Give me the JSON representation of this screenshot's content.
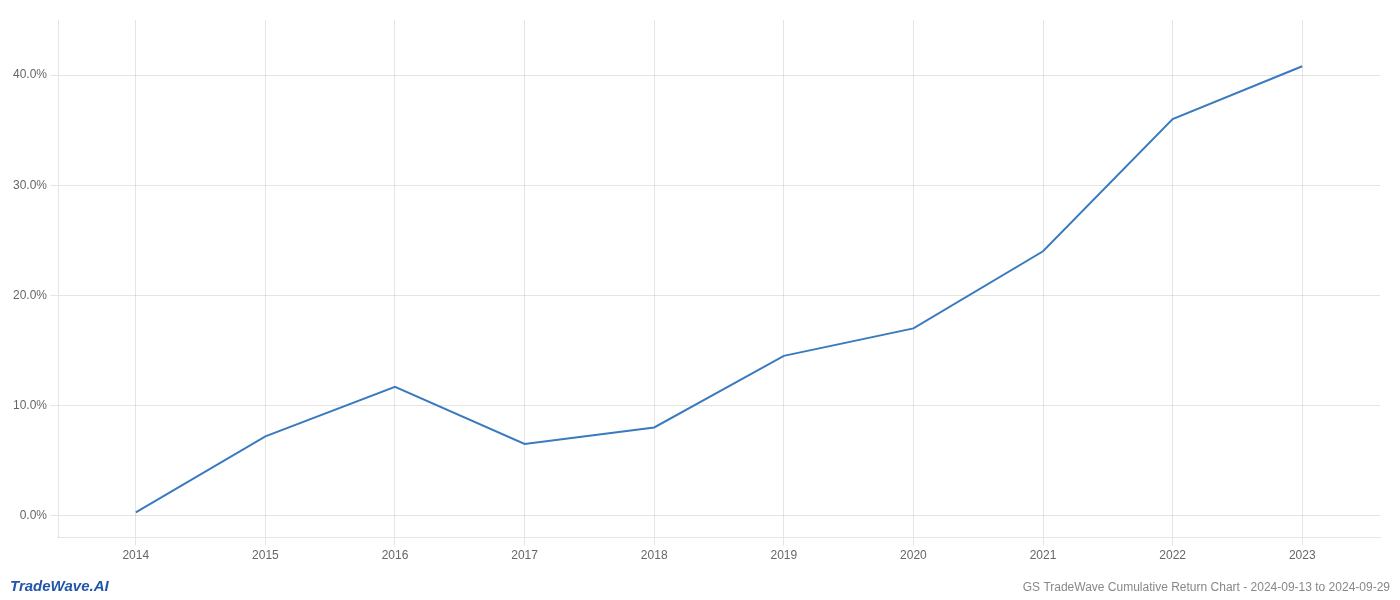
{
  "chart_data": {
    "type": "line",
    "x": [
      2014,
      2015,
      2016,
      2017,
      2018,
      2019,
      2020,
      2021,
      2022,
      2023
    ],
    "values": [
      0.003,
      0.072,
      0.117,
      0.065,
      0.08,
      0.145,
      0.17,
      0.24,
      0.36,
      0.408
    ],
    "color": "#3a7abf",
    "xlim": [
      2013.4,
      2023.6
    ],
    "xticks": [
      2014,
      2015,
      2016,
      2017,
      2018,
      2019,
      2020,
      2021,
      2022,
      2023
    ],
    "ylim": [
      -0.02,
      0.45
    ],
    "yticks": [
      {
        "value": 0.0,
        "label": "0.0%"
      },
      {
        "value": 0.1,
        "label": "10.0%"
      },
      {
        "value": 0.2,
        "label": "20.0%"
      },
      {
        "value": 0.3,
        "label": "30.0%"
      },
      {
        "value": 0.4,
        "label": "40.0%"
      }
    ],
    "grid": true,
    "annotations": [
      {
        "text": "TradeWave.AI",
        "color": "#2255aa"
      },
      {
        "text": "GS TradeWave Cumulative Return Chart - 2024-09-13 to 2024-09-29",
        "color": "#888888"
      }
    ]
  }
}
